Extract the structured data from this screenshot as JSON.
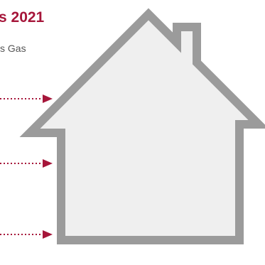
{
  "header": {
    "title": "s 2021",
    "subtitle": "s Gas"
  },
  "icons": {
    "house": "house-icon",
    "arrows": [
      "arrow-right-icon",
      "arrow-right-icon",
      "arrow-right-icon"
    ]
  },
  "colors": {
    "accent": "#a6163a",
    "house_outline": "#9b9b9b",
    "house_fill": "#efefef"
  }
}
